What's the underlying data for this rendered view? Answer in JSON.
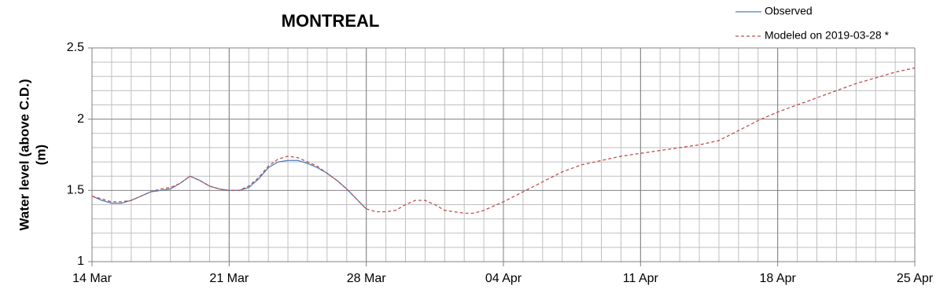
{
  "chart_data": {
    "type": "line",
    "title": "MONTREAL",
    "y_label": [
      "Water level (above C.D.)",
      "(m)"
    ],
    "xlim": [
      0,
      42
    ],
    "xticks": [
      {
        "value": 0,
        "label": "14 Mar"
      },
      {
        "value": 7,
        "label": "21 Mar"
      },
      {
        "value": 14,
        "label": "28 Mar"
      },
      {
        "value": 21,
        "label": "04 Apr"
      },
      {
        "value": 28,
        "label": "11 Apr"
      },
      {
        "value": 35,
        "label": "18 Apr"
      },
      {
        "value": 42,
        "label": "25 Apr"
      }
    ],
    "ylim": [
      1,
      2.5
    ],
    "yticks": [
      1,
      1.5,
      2,
      2.5
    ],
    "grid": true,
    "legend": "top-right",
    "series": [
      {
        "name": "Observed",
        "color": "#4a7ebb",
        "line_style": "solid",
        "x": [
          0,
          0.5,
          1,
          1.5,
          2,
          2.5,
          3,
          3.5,
          4,
          4.5,
          5,
          5.5,
          6,
          6.5,
          7,
          7.5,
          8,
          8.5,
          9,
          9.5,
          10,
          10.5,
          11,
          11.5,
          12,
          12.5,
          13,
          13.5,
          14
        ],
        "values": [
          1.46,
          1.43,
          1.41,
          1.41,
          1.43,
          1.46,
          1.49,
          1.5,
          1.51,
          1.55,
          1.6,
          1.57,
          1.53,
          1.51,
          1.5,
          1.5,
          1.52,
          1.58,
          1.66,
          1.7,
          1.71,
          1.71,
          1.69,
          1.66,
          1.62,
          1.57,
          1.51,
          1.44,
          1.37
        ]
      },
      {
        "name": "Modeled on 2019-03-28 *",
        "color": "#c0504d",
        "line_style": "dashed",
        "x": [
          0,
          0.5,
          1,
          1.5,
          2,
          2.5,
          3,
          3.5,
          4,
          4.5,
          5,
          5.5,
          6,
          6.5,
          7,
          7.5,
          8,
          8.5,
          9,
          9.5,
          10,
          10.5,
          11,
          11.5,
          12,
          12.5,
          13,
          13.5,
          14,
          14.5,
          15,
          15.5,
          16,
          16.5,
          17,
          17.5,
          18,
          18.5,
          19,
          19.5,
          20,
          21,
          22,
          23,
          24,
          25,
          26,
          27,
          28,
          29,
          30,
          31,
          32,
          33,
          34,
          35,
          36,
          37,
          38,
          39,
          40,
          41,
          42
        ],
        "values": [
          1.46,
          1.44,
          1.42,
          1.42,
          1.43,
          1.46,
          1.49,
          1.51,
          1.52,
          1.55,
          1.6,
          1.57,
          1.53,
          1.51,
          1.5,
          1.5,
          1.53,
          1.59,
          1.67,
          1.72,
          1.74,
          1.73,
          1.7,
          1.67,
          1.62,
          1.57,
          1.51,
          1.44,
          1.37,
          1.35,
          1.35,
          1.36,
          1.4,
          1.43,
          1.43,
          1.4,
          1.36,
          1.35,
          1.34,
          1.34,
          1.36,
          1.42,
          1.49,
          1.56,
          1.63,
          1.68,
          1.71,
          1.74,
          1.76,
          1.78,
          1.8,
          1.82,
          1.85,
          1.92,
          1.99,
          2.05,
          2.1,
          2.15,
          2.2,
          2.25,
          2.29,
          2.33,
          2.36
        ]
      }
    ]
  }
}
